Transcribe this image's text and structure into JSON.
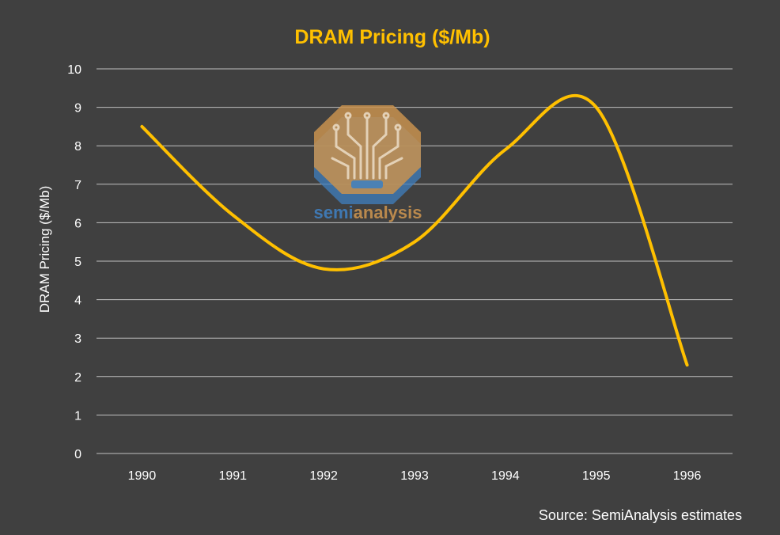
{
  "colors": {
    "background": "#404040",
    "accent": "#FFC000",
    "grid": "#BFBFBF",
    "text": "#FFFFFF",
    "logo_orange": "#C8924F",
    "logo_blue": "#3F7FBF"
  },
  "logo": {
    "name": "semianalysis-logo-icon",
    "text_part1": "semi",
    "text_part2": "analysis"
  },
  "source": "Source: SemiAnalysis estimates",
  "chart_data": {
    "type": "line",
    "title": "DRAM Pricing ($/Mb)",
    "xlabel": "",
    "ylabel": "DRAM Pricing ($/Mb)",
    "categories": [
      "1990",
      "1991",
      "1992",
      "1993",
      "1994",
      "1995",
      "1996"
    ],
    "series": [
      {
        "name": "DRAM Pricing ($/Mb)",
        "values": [
          8.5,
          6.2,
          4.8,
          5.5,
          7.9,
          9.0,
          2.3
        ]
      }
    ],
    "ylim": [
      0,
      10
    ],
    "yticks": [
      "0",
      "1",
      "2",
      "3",
      "4",
      "5",
      "6",
      "7",
      "8",
      "9",
      "10"
    ],
    "grid": true,
    "smooth": true,
    "legend": "none"
  }
}
